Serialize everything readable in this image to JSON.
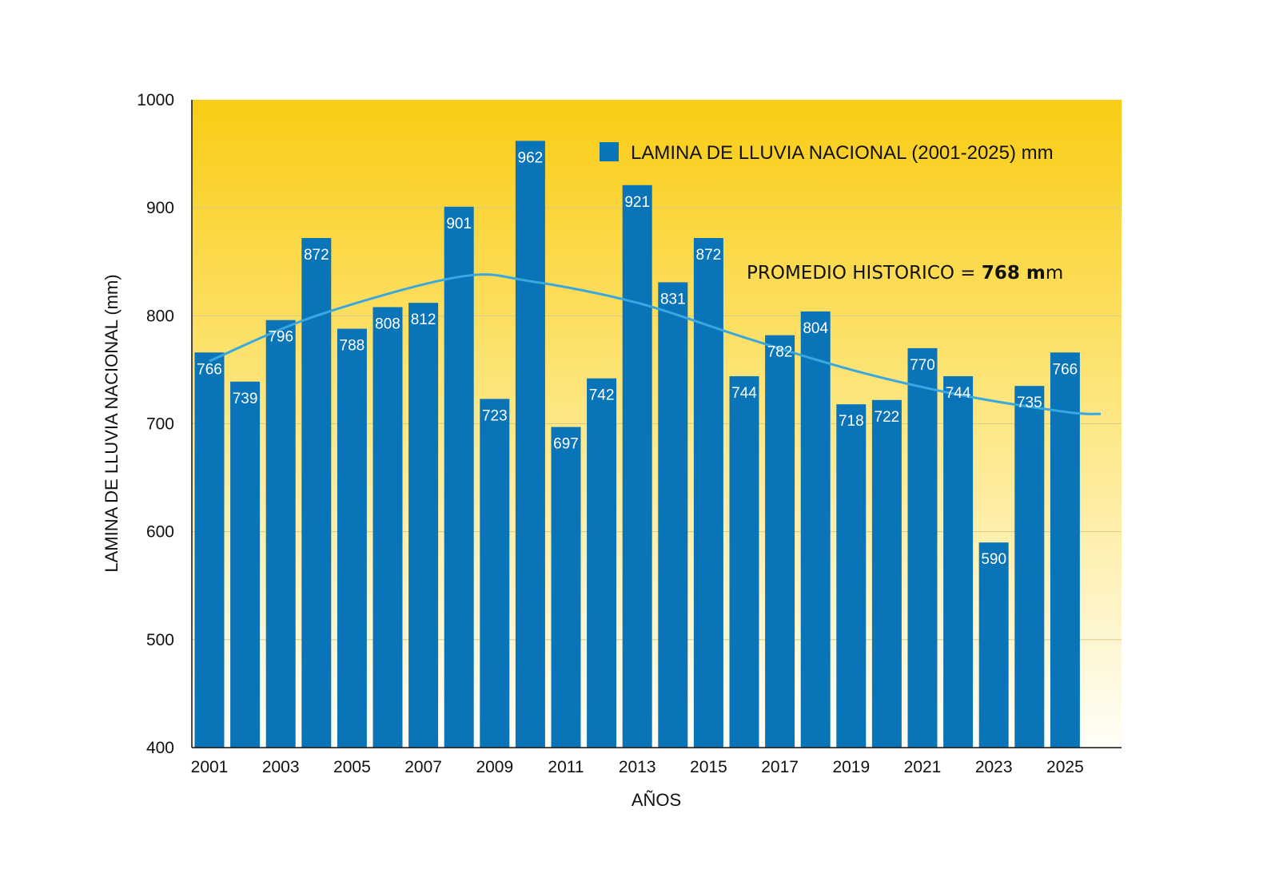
{
  "chart_data": {
    "type": "bar",
    "categories": [
      "2001",
      "2002",
      "2003",
      "2004",
      "2005",
      "2006",
      "2007",
      "2008",
      "2009",
      "2010",
      "2011",
      "2012",
      "2013",
      "2014",
      "2015",
      "2016",
      "2017",
      "2018",
      "2019",
      "2020",
      "2021",
      "2022",
      "2023",
      "2024",
      "2025"
    ],
    "x_tick_labels": [
      "2001",
      "2003",
      "2005",
      "2007",
      "2009",
      "2011",
      "2013",
      "2015",
      "2017",
      "2019",
      "2021",
      "2023",
      "2025"
    ],
    "series": [
      {
        "name": "LAMINA DE LLUVIA NACIONAL (2001-2025) mm",
        "values": [
          766,
          739,
          796,
          872,
          788,
          808,
          812,
          901,
          723,
          962,
          697,
          742,
          921,
          831,
          872,
          744,
          782,
          804,
          718,
          722,
          770,
          744,
          590,
          735,
          766
        ]
      }
    ],
    "trendline": {
      "type": "polynomial",
      "x": [
        "2001",
        "2004",
        "2008",
        "2010",
        "2013",
        "2016",
        "2019",
        "2022",
        "2025",
        "2026"
      ],
      "y": [
        758,
        800,
        836,
        832,
        812,
        780,
        750,
        727,
        711,
        709
      ]
    },
    "xlabel": "AÑOS",
    "ylabel": "LAMINA DE LLUVIA NACIONAL  (mm)",
    "ylim": [
      400,
      1000
    ],
    "yticks": [
      400,
      500,
      600,
      700,
      800,
      900,
      1000
    ],
    "grid": true,
    "legend_position": "top-right",
    "annotation": {
      "prefix": "PROMEDIO HISTORICO = ",
      "bold": "768 m",
      "suffix": "m"
    },
    "colors": {
      "bar": "#0a74b9",
      "trendline": "#3aa8e0",
      "background_top": "#f9cc14",
      "background_bottom": "#fffef8"
    }
  }
}
